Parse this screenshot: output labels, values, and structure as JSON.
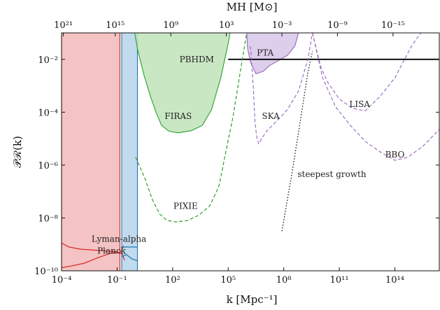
{
  "chart_data": {
    "type": "area",
    "xlabel": "k [Mpc⁻¹]",
    "ylabel": "𝒫ℛ(k)",
    "top_xlabel": "MH [M⊙]",
    "x_scale": "log",
    "y_scale": "log",
    "xlim_log10": [
      -4,
      16.4
    ],
    "ylim_log10": [
      -10,
      -1
    ],
    "x_ticks": [
      {
        "exp": -4,
        "label": "10⁻⁴"
      },
      {
        "exp": -1,
        "label": "10⁻¹"
      },
      {
        "exp": 2,
        "label": "10²"
      },
      {
        "exp": 5,
        "label": "10⁵"
      },
      {
        "exp": 8,
        "label": "10⁸"
      },
      {
        "exp": 11,
        "label": "10¹¹"
      },
      {
        "exp": 14,
        "label": "10¹⁴"
      }
    ],
    "y_ticks": [
      {
        "exp": -10,
        "label": "10⁻¹⁰"
      },
      {
        "exp": -8,
        "label": "10⁻⁸"
      },
      {
        "exp": -6,
        "label": "10⁻⁶"
      },
      {
        "exp": -4,
        "label": "10⁻⁴"
      },
      {
        "exp": -2,
        "label": "10⁻²"
      }
    ],
    "top_ticks": [
      {
        "k_exp": -3.9,
        "label": "10²¹"
      },
      {
        "k_exp": -1.1,
        "label": "10¹⁵"
      },
      {
        "k_exp": 1.9,
        "label": "10⁹"
      },
      {
        "k_exp": 4.9,
        "label": "10³"
      },
      {
        "k_exp": 7.9,
        "label": "10⁻³"
      },
      {
        "k_exp": 10.9,
        "label": "10⁻⁹"
      },
      {
        "k_exp": 13.9,
        "label": "10⁻¹⁵"
      }
    ],
    "regions": [
      {
        "name": "Planck",
        "fill": "#f2b8b8",
        "stroke": "#d62728",
        "points": [
          [
            -4,
            -10
          ],
          [
            -4,
            -1
          ],
          [
            -0.85,
            -1
          ],
          [
            -0.85,
            -10
          ]
        ]
      },
      {
        "name": "Lyman-alpha",
        "fill": "#b6d4ea",
        "stroke": "#1f77b4",
        "points": [
          [
            -0.75,
            -10
          ],
          [
            -0.75,
            -1
          ],
          [
            0.1,
            -1
          ],
          [
            0.1,
            -10
          ]
        ]
      },
      {
        "name": "FIRAS",
        "fill": "#bfe3b8",
        "stroke": "#2ca02c",
        "points": [
          [
            -0.05,
            -1
          ],
          [
            0.1,
            -1.6
          ],
          [
            0.45,
            -2.6
          ],
          [
            0.8,
            -3.4
          ],
          [
            1.1,
            -4.0
          ],
          [
            1.4,
            -4.5
          ],
          [
            1.8,
            -4.72
          ],
          [
            2.3,
            -4.78
          ],
          [
            3.0,
            -4.7
          ],
          [
            3.6,
            -4.5
          ],
          [
            4.1,
            -3.9
          ],
          [
            4.6,
            -2.7
          ],
          [
            5.0,
            -1.4
          ],
          [
            5.1,
            -1
          ]
        ]
      },
      {
        "name": "PTA",
        "fill": "#d7c6e8",
        "stroke": "#9467bd",
        "points": [
          [
            6.0,
            -1
          ],
          [
            6.05,
            -1.6
          ],
          [
            6.2,
            -2.1
          ],
          [
            6.5,
            -2.55
          ],
          [
            6.9,
            -2.45
          ],
          [
            7.2,
            -2.25
          ],
          [
            7.7,
            -2.05
          ],
          [
            8.2,
            -1.85
          ],
          [
            8.6,
            -1.5
          ],
          [
            8.8,
            -1
          ]
        ]
      }
    ],
    "curves": [
      {
        "name": "PBHDM",
        "color": "#000000",
        "style": "solid",
        "width": 1.8,
        "points": [
          [
            5.0,
            -2
          ],
          [
            16.4,
            -2
          ]
        ]
      },
      {
        "name": "Planck",
        "color": "#d62728",
        "style": "solid",
        "width": 1.2,
        "points": [
          [
            -4,
            -8.95
          ],
          [
            -3.6,
            -9.1
          ],
          [
            -3.0,
            -9.18
          ],
          [
            -2.2,
            -9.22
          ],
          [
            -1.4,
            -9.26
          ],
          [
            -0.85,
            -9.3
          ],
          [
            -0.7,
            -9.4
          ],
          [
            -0.6,
            -9.6
          ]
        ]
      },
      {
        "name": "Planck",
        "color": "#d62728",
        "style": "solid",
        "width": 1.2,
        "points": [
          [
            -4,
            -9.88
          ],
          [
            -3.5,
            -9.82
          ],
          [
            -2.8,
            -9.72
          ],
          [
            -2.1,
            -9.52
          ],
          [
            -1.3,
            -9.32
          ],
          [
            -0.85,
            -9.3
          ],
          [
            -0.75,
            -9.2
          ],
          [
            -0.65,
            -9.05
          ]
        ]
      },
      {
        "name": "Lyman-alpha",
        "color": "#1f77b4",
        "style": "solid",
        "width": 1.2,
        "points": [
          [
            -0.75,
            -9.48
          ],
          [
            -0.5,
            -9.38
          ],
          [
            -0.2,
            -9.55
          ],
          [
            0.1,
            -9.62
          ]
        ]
      },
      {
        "name": "Lyman-alpha",
        "color": "#1f77b4",
        "style": "solid",
        "width": 1.2,
        "points": [
          [
            -0.75,
            -9.1
          ],
          [
            0.1,
            -9.1
          ]
        ]
      },
      {
        "name": "PIXIE",
        "color": "#2ca02c",
        "style": "dashed",
        "width": 1.2,
        "points": [
          [
            0.0,
            -5.7
          ],
          [
            0.5,
            -6.5
          ],
          [
            0.9,
            -7.3
          ],
          [
            1.3,
            -7.85
          ],
          [
            1.7,
            -8.1
          ],
          [
            2.2,
            -8.15
          ],
          [
            2.8,
            -8.1
          ],
          [
            3.4,
            -7.9
          ],
          [
            4.0,
            -7.55
          ],
          [
            4.5,
            -6.8
          ],
          [
            4.9,
            -5.4
          ],
          [
            5.25,
            -4.2
          ],
          [
            5.6,
            -2.7
          ],
          [
            6.0,
            -1
          ]
        ]
      },
      {
        "name": "SKA",
        "color": "#9467bd",
        "style": "dashed",
        "width": 1.1,
        "points": [
          [
            6.2,
            -1.5
          ],
          [
            6.35,
            -3.0
          ],
          [
            6.45,
            -4.4
          ],
          [
            6.55,
            -5.0
          ],
          [
            6.65,
            -5.2
          ],
          [
            6.8,
            -5.0
          ],
          [
            7.1,
            -4.7
          ],
          [
            7.6,
            -4.35
          ],
          [
            8.2,
            -3.9
          ],
          [
            8.8,
            -3.2
          ],
          [
            9.3,
            -2.0
          ],
          [
            9.55,
            -1
          ]
        ]
      },
      {
        "name": "LISA",
        "color": "#9467bd",
        "style": "dashed",
        "width": 1.1,
        "points": [
          [
            9.55,
            -1
          ],
          [
            10.0,
            -2.3
          ],
          [
            10.4,
            -2.9
          ],
          [
            11.0,
            -3.5
          ],
          [
            11.7,
            -3.85
          ],
          [
            12.4,
            -3.95
          ],
          [
            13.2,
            -3.4
          ],
          [
            14.0,
            -2.7
          ],
          [
            14.9,
            -1.5
          ],
          [
            15.4,
            -1
          ]
        ]
      },
      {
        "name": "BBO",
        "color": "#9467bd",
        "style": "dashed",
        "width": 1.1,
        "points": [
          [
            9.55,
            -1
          ],
          [
            10.1,
            -2.7
          ],
          [
            10.8,
            -3.8
          ],
          [
            11.6,
            -4.5
          ],
          [
            12.4,
            -5.1
          ],
          [
            13.2,
            -5.5
          ],
          [
            14.0,
            -5.82
          ],
          [
            14.7,
            -5.7
          ],
          [
            15.5,
            -5.3
          ],
          [
            16.4,
            -4.65
          ]
        ]
      },
      {
        "name": "steepest growth",
        "color": "#000000",
        "style": "dotted",
        "width": 1.2,
        "points": [
          [
            7.9,
            -8.5
          ],
          [
            8.4,
            -6.5
          ],
          [
            8.9,
            -4.3
          ],
          [
            9.3,
            -2.5
          ],
          [
            9.55,
            -1.7
          ]
        ]
      }
    ],
    "labels": [
      {
        "text": "PBHDM",
        "x": 3.3,
        "y": -2
      },
      {
        "text": "PTA",
        "x": 7.0,
        "y": -1.75
      },
      {
        "text": "FIRAS",
        "x": 2.3,
        "y": -4.15
      },
      {
        "text": "SKA",
        "x": 7.3,
        "y": -4.15
      },
      {
        "text": "LISA",
        "x": 12.1,
        "y": -3.7
      },
      {
        "text": "BBO",
        "x": 14.0,
        "y": -5.6
      },
      {
        "text": "steepest growth",
        "x": 10.6,
        "y": -6.35
      },
      {
        "text": "PIXIE",
        "x": 2.7,
        "y": -7.55
      },
      {
        "text": "Lyman-alpha",
        "x": -0.9,
        "y": -8.8
      },
      {
        "text": "Planck",
        "x": -1.3,
        "y": -9.25
      }
    ]
  }
}
